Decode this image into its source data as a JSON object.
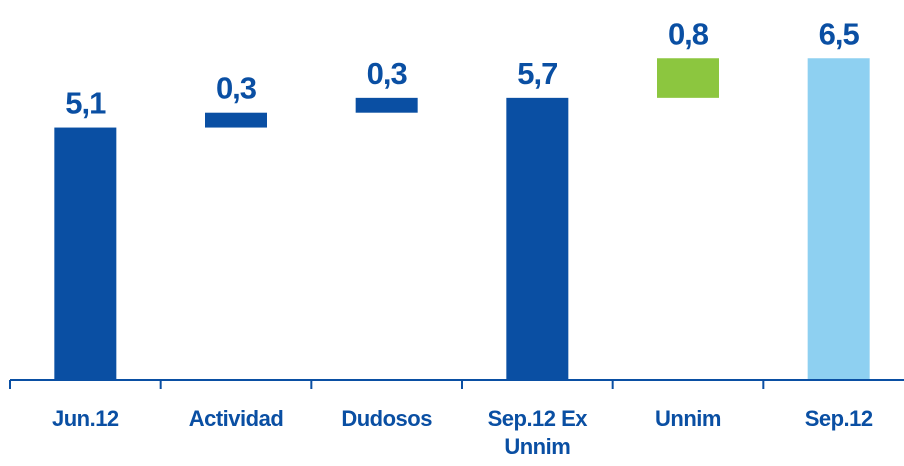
{
  "chart_data": {
    "type": "waterfall",
    "categories": [
      "Jun.12",
      "Actividad",
      "Dudosos",
      "Sep.12 Ex Unnim",
      "Unnim",
      "Sep.12"
    ],
    "values": [
      5.1,
      0.3,
      0.3,
      5.7,
      0.8,
      6.5
    ],
    "value_labels": [
      "5,1",
      "0,3",
      "0,3",
      "5,7",
      "0,8",
      "6,5"
    ],
    "measure": [
      "total",
      "relative",
      "relative",
      "total",
      "relative",
      "total"
    ],
    "colors": [
      "#0a4fa3",
      "#0a4fa3",
      "#0a4fa3",
      "#0a4fa3",
      "#8cc63f",
      "#8ed0f1"
    ],
    "ylim": [
      0,
      7
    ]
  }
}
